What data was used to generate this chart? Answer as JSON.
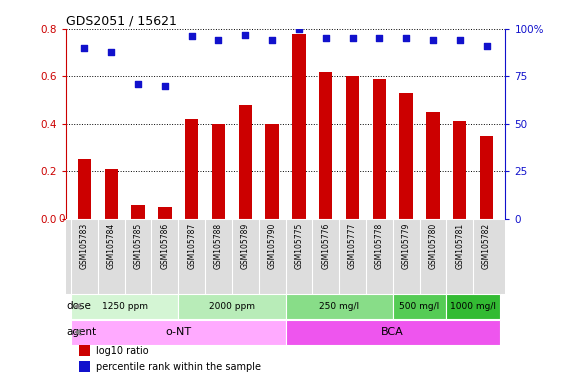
{
  "title": "GDS2051 / 15621",
  "samples": [
    "GSM105783",
    "GSM105784",
    "GSM105785",
    "GSM105786",
    "GSM105787",
    "GSM105788",
    "GSM105789",
    "GSM105790",
    "GSM105775",
    "GSM105776",
    "GSM105777",
    "GSM105778",
    "GSM105779",
    "GSM105780",
    "GSM105781",
    "GSM105782"
  ],
  "log10_ratio": [
    0.25,
    0.21,
    0.06,
    0.05,
    0.42,
    0.4,
    0.48,
    0.4,
    0.78,
    0.62,
    0.6,
    0.59,
    0.53,
    0.45,
    0.41,
    0.35
  ],
  "percentile_rank": [
    90,
    88,
    71,
    70,
    96,
    94,
    97,
    94,
    100,
    95,
    95,
    95,
    95,
    94,
    94,
    91
  ],
  "bar_color": "#cc0000",
  "dot_color": "#1111cc",
  "ylim_left": [
    0,
    0.8
  ],
  "ylim_right": [
    0,
    100
  ],
  "yticks_left": [
    0,
    0.2,
    0.4,
    0.6,
    0.8
  ],
  "yticks_right": [
    0,
    25,
    50,
    75,
    100
  ],
  "ytick_labels_right": [
    "0",
    "25",
    "50",
    "75",
    "100%"
  ],
  "dose_groups": [
    {
      "label": "1250 ppm",
      "start": 0,
      "end": 4,
      "color": "#d4f5d4"
    },
    {
      "label": "2000 ppm",
      "start": 4,
      "end": 8,
      "color": "#b8ecb8"
    },
    {
      "label": "250 mg/l",
      "start": 8,
      "end": 12,
      "color": "#88dd88"
    },
    {
      "label": "500 mg/l",
      "start": 12,
      "end": 14,
      "color": "#55cc55"
    },
    {
      "label": "1000 mg/l",
      "start": 14,
      "end": 16,
      "color": "#33bb33"
    }
  ],
  "agent_groups": [
    {
      "label": "o-NT",
      "start": 0,
      "end": 8,
      "color": "#ffaaff"
    },
    {
      "label": "BCA",
      "start": 8,
      "end": 16,
      "color": "#ee55ee"
    }
  ],
  "dose_label": "dose",
  "agent_label": "agent",
  "legend": [
    {
      "color": "#cc0000",
      "label": "log10 ratio"
    },
    {
      "color": "#1111cc",
      "label": "percentile rank within the sample"
    }
  ],
  "bg_color": "#ffffff",
  "grid_color": "#000000",
  "label_color_left": "#cc0000",
  "label_color_right": "#1111cc",
  "xtick_bg": "#dddddd"
}
